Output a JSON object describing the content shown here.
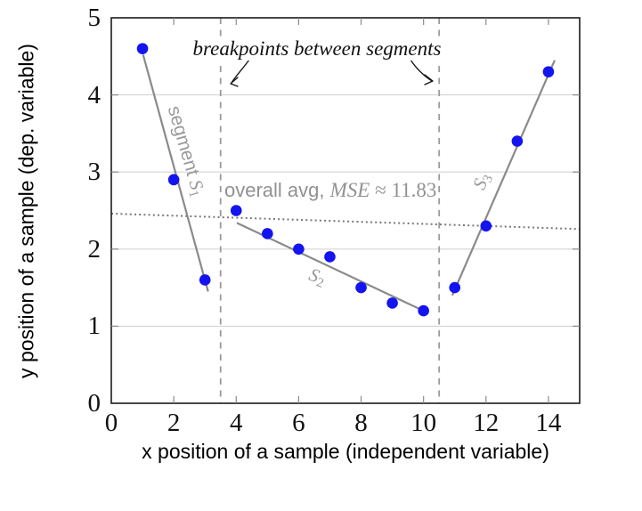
{
  "colors": {
    "point": "#1414f0",
    "segment_line": "#8a8a8a",
    "breakpoint_dash": "#9a9a9a",
    "avg_dotted": "#787878",
    "grid": "#d4d4d4",
    "border": "#1a1a1a",
    "tick": "#8a8a8a",
    "gray_text": "#919191"
  },
  "annotations": {
    "breakpoints": {
      "text": "breakpoints between segments"
    },
    "overall_avg": {
      "prefix": "overall avg, ",
      "var": "MSE",
      "rest": " ≈ 11.83"
    },
    "s1": {
      "prefix": "segment ",
      "letter": "S",
      "sub": "1"
    },
    "s2": {
      "letter": "S",
      "sub": "2"
    },
    "s3": {
      "letter": "S",
      "sub": "3"
    }
  },
  "chart_data": {
    "type": "scatter",
    "title": "",
    "xlabel": "x position of a sample (independent variable)",
    "ylabel": "y position of a sample (dep. variable)",
    "xlim": [
      0,
      15
    ],
    "ylim": [
      0,
      5
    ],
    "xticks": [
      0,
      2,
      4,
      6,
      8,
      10,
      12,
      14
    ],
    "yticks": [
      0,
      1,
      2,
      3,
      4,
      5
    ],
    "grid": "horizontal major gridlines only",
    "legend": "none",
    "points": [
      [
        1,
        4.6
      ],
      [
        2,
        2.9
      ],
      [
        3,
        1.6
      ],
      [
        4,
        2.5
      ],
      [
        5,
        2.2
      ],
      [
        6,
        2.0
      ],
      [
        7,
        1.9
      ],
      [
        8,
        1.5
      ],
      [
        9,
        1.3
      ],
      [
        10,
        1.2
      ],
      [
        11,
        1.5
      ],
      [
        12,
        2.3
      ],
      [
        13,
        3.4
      ],
      [
        14,
        4.3
      ]
    ],
    "breakpoint_x": [
      3.5,
      10.5
    ],
    "segment_fit_lines": [
      {
        "name": "segment S1",
        "x_range": [
          1,
          3
        ],
        "line": [
          [
            1.02,
            4.52
          ],
          [
            3.1,
            1.45
          ]
        ]
      },
      {
        "name": "S2",
        "x_range": [
          4,
          10
        ],
        "line": [
          [
            4.02,
            2.34
          ],
          [
            10.15,
            1.17
          ]
        ]
      },
      {
        "name": "S3",
        "x_range": [
          11,
          14
        ],
        "line": [
          [
            10.92,
            1.4
          ],
          [
            14.2,
            4.45
          ]
        ]
      }
    ],
    "overall_avg_line": {
      "line": [
        [
          0,
          2.46
        ],
        [
          15,
          2.26
        ]
      ],
      "mse": 11.83
    }
  }
}
